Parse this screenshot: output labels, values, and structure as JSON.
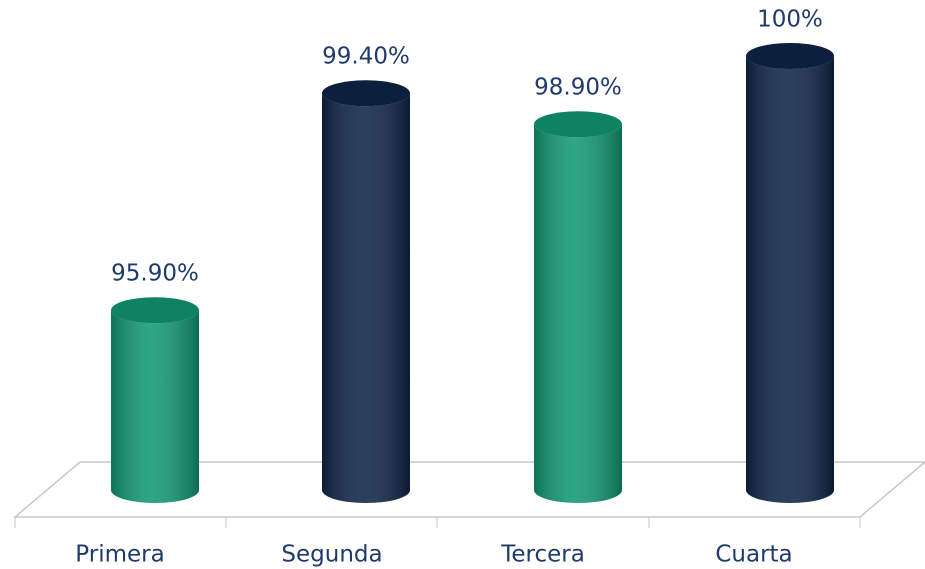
{
  "chart_data": {
    "type": "bar",
    "categories": [
      "Primera",
      "Segunda",
      "Tercera",
      "Cuarta"
    ],
    "values": [
      95.9,
      99.4,
      98.9,
      100
    ],
    "value_labels": [
      "95.90%",
      "99.40%",
      "98.90%",
      "100%"
    ],
    "colors": [
      "#129a73",
      "#0f2548",
      "#129a73",
      "#0f2548"
    ],
    "ylim": [
      93,
      100.5
    ]
  }
}
